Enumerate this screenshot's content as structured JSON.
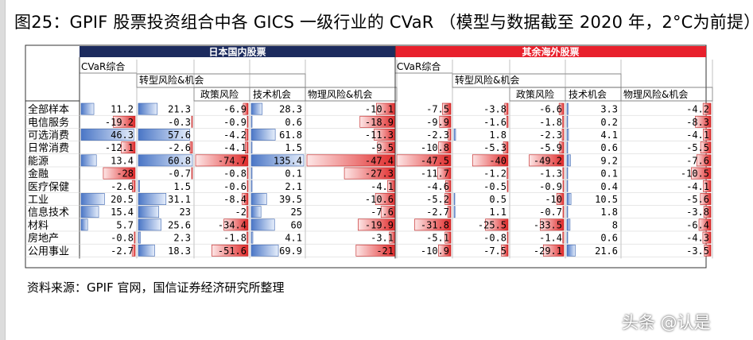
{
  "title": "图25：GPIF 股票投资组合中各 GICS 一级行业的 CVaR （模型与数据截至 2020 年，2°C为前提）",
  "source": "资料来源：GPIF 官网，国信证券经济研究所整理",
  "watermark": "头条 @认是",
  "colors": {
    "domestic_band": "#1c2b5e",
    "foreign_band": "#e8202c",
    "positive_bar": "#4a76c6",
    "negative_bar": "#e02a2a"
  },
  "chart_data": {
    "type": "table",
    "groups": [
      {
        "label": "日本国内股票",
        "col_labels": [
          "CVaR综合",
          "转型风险&机会",
          "政策风险",
          "技术机会",
          "物理风险&机会"
        ]
      },
      {
        "label": "其余海外股票",
        "col_labels": [
          "CVaR综合",
          "转型风险&机会",
          "政策风险",
          "技术机会",
          "物理风险&机会"
        ]
      }
    ],
    "rows": [
      {
        "name": "全部样本",
        "domestic": [
          11.2,
          21.3,
          -6.9,
          28.3,
          -10.1
        ],
        "foreign": [
          -7.5,
          -3.8,
          -6.6,
          3.3,
          -4.2
        ]
      },
      {
        "name": "电信服务",
        "domestic": [
          -19.2,
          -0.3,
          -0.9,
          0.6,
          -18.9
        ],
        "foreign": [
          -9.9,
          -1.6,
          -1.8,
          0.2,
          -8.3
        ]
      },
      {
        "name": "可选消费",
        "domestic": [
          46.3,
          57.6,
          -4.2,
          61.8,
          -11.3
        ],
        "foreign": [
          -2.3,
          1.8,
          -2.3,
          4.1,
          -4.1
        ]
      },
      {
        "name": "日常消费",
        "domestic": [
          -12.1,
          -2.6,
          -4.1,
          1.5,
          -9.5
        ],
        "foreign": [
          -10.8,
          -5.3,
          -5.9,
          0.6,
          -5.5
        ]
      },
      {
        "name": "能源",
        "domestic": [
          13.4,
          60.8,
          -74.7,
          135.4,
          -47.4
        ],
        "foreign": [
          -47.5,
          -40,
          -49.2,
          9.2,
          -7.6
        ]
      },
      {
        "name": "金融",
        "domestic": [
          -28,
          -0.7,
          -0.8,
          0.1,
          -27.3
        ],
        "foreign": [
          -11.7,
          -1.2,
          -1.3,
          0.1,
          -10.5
        ]
      },
      {
        "name": "医疗保健",
        "domestic": [
          -2.6,
          1.5,
          -0.6,
          2.1,
          -4.1
        ],
        "foreign": [
          -4.6,
          -0.5,
          -0.9,
          0.4,
          -4.1
        ]
      },
      {
        "name": "工业",
        "domestic": [
          20.5,
          31.1,
          -8.4,
          39.5,
          -10.6
        ],
        "foreign": [
          -5.2,
          0.5,
          -10,
          10.5,
          -5.6
        ]
      },
      {
        "name": "信息技术",
        "domestic": [
          15.4,
          23,
          -2,
          25,
          -7.6
        ],
        "foreign": [
          -2.7,
          1.1,
          -0.7,
          1.8,
          -3.8
        ]
      },
      {
        "name": "材料",
        "domestic": [
          5.7,
          25.6,
          -34.4,
          60,
          -19.9
        ],
        "foreign": [
          -31.8,
          -25.5,
          -33.5,
          8,
          -6.4
        ]
      },
      {
        "name": "房地产",
        "domestic": [
          -0.8,
          2.3,
          -1.8,
          4.1,
          -3.1
        ],
        "foreign": [
          -5.1,
          -0.8,
          -1.4,
          0.6,
          -4.3
        ]
      },
      {
        "name": "公用事业",
        "domestic": [
          -2.7,
          18.3,
          -51.6,
          69.9,
          -21
        ],
        "foreign": [
          -10.9,
          -7.5,
          -29.1,
          21.6,
          -3.5
        ]
      }
    ]
  }
}
